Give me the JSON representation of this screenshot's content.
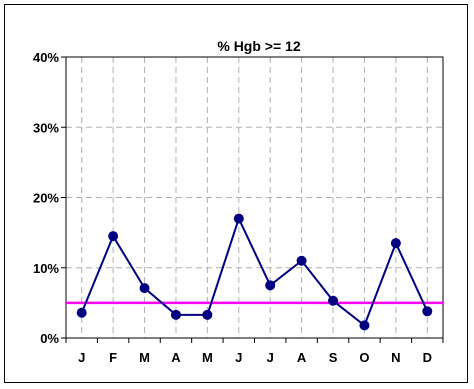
{
  "chart_data": {
    "type": "line",
    "title": "% Hgb >= 12",
    "xlabel": "",
    "ylabel": "",
    "categories": [
      "J",
      "F",
      "M",
      "A",
      "M",
      "J",
      "J",
      "A",
      "S",
      "O",
      "N",
      "D"
    ],
    "series": [
      {
        "values": [
          3.6,
          14.5,
          7.1,
          3.3,
          3.3,
          17.0,
          7.5,
          11.0,
          5.3,
          1.8,
          13.5,
          3.8
        ]
      }
    ],
    "reference_line": {
      "value": 5
    },
    "ylim": [
      0,
      40
    ],
    "yticks": [
      0,
      10,
      20,
      30,
      40
    ],
    "ytick_labels": [
      "0%",
      "10%",
      "20%",
      "30%",
      "40%"
    ],
    "grid": true,
    "legend": "none",
    "colors": {
      "series": "#000080",
      "reference": "#ff00ff",
      "grid": "#b0b0b0",
      "axis": "#000000"
    }
  }
}
